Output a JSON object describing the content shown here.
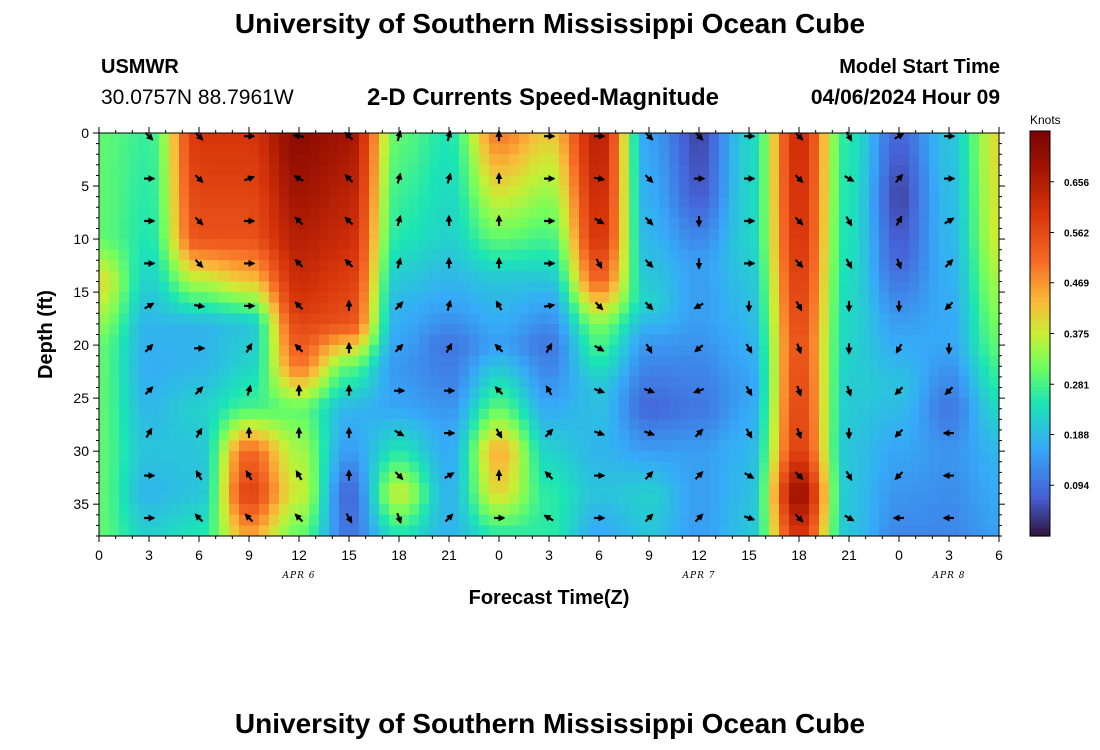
{
  "header": {
    "title": "University of Southern Mississippi Ocean Cube",
    "station": "USMWR",
    "coordinates": "30.0757N  88.7961W",
    "subtitle": "2-D Currents Speed-Magnitude",
    "model_start_label": "Model Start Time",
    "model_start_value": "04/06/2024 Hour 09"
  },
  "footer": {
    "title": "University of Southern Mississippi Ocean Cube"
  },
  "chart_data": {
    "type": "heatmap",
    "title": "2-D Currents Speed-Magnitude",
    "xlabel": "Forecast Time(Z)",
    "ylabel": "Depth (ft)",
    "x_range_hours": [
      0,
      54
    ],
    "y_range_ft": [
      0,
      38
    ],
    "x_ticks": [
      {
        "h": 0,
        "label": "0"
      },
      {
        "h": 3,
        "label": "3"
      },
      {
        "h": 6,
        "label": "6"
      },
      {
        "h": 9,
        "label": "9"
      },
      {
        "h": 12,
        "label": "12"
      },
      {
        "h": 15,
        "label": "15"
      },
      {
        "h": 18,
        "label": "18"
      },
      {
        "h": 21,
        "label": "21"
      },
      {
        "h": 24,
        "label": "0"
      },
      {
        "h": 27,
        "label": "3"
      },
      {
        "h": 30,
        "label": "6"
      },
      {
        "h": 33,
        "label": "9"
      },
      {
        "h": 36,
        "label": "12"
      },
      {
        "h": 39,
        "label": "15"
      },
      {
        "h": 42,
        "label": "18"
      },
      {
        "h": 45,
        "label": "21"
      },
      {
        "h": 48,
        "label": "0"
      },
      {
        "h": 51,
        "label": "3"
      },
      {
        "h": 54,
        "label": "6"
      }
    ],
    "date_labels": [
      {
        "h": 12,
        "label": "APR 6"
      },
      {
        "h": 36,
        "label": "APR 7"
      },
      {
        "h": 51,
        "label": "APR 8"
      }
    ],
    "y_ticks": [
      0,
      5,
      10,
      15,
      20,
      25,
      30,
      35
    ],
    "colorbar": {
      "unit": "Knots",
      "min": 0.0,
      "max": 0.75,
      "ticks": [
        "0.656",
        "0.562",
        "0.469",
        "0.375",
        "0.281",
        "0.188",
        "0.094"
      ],
      "tick_values": [
        0.656,
        0.562,
        0.469,
        0.375,
        0.281,
        0.188,
        0.094
      ]
    },
    "speed_columns": [
      {
        "h": 0,
        "profile": [
          [
            0,
            0.3
          ],
          [
            10,
            0.3
          ],
          [
            14,
            0.4
          ],
          [
            20,
            0.3
          ],
          [
            38,
            0.3
          ]
        ]
      },
      {
        "h": 3,
        "profile": [
          [
            0,
            0.27
          ],
          [
            10,
            0.25
          ],
          [
            14,
            0.22
          ],
          [
            18,
            0.18
          ],
          [
            22,
            0.17
          ],
          [
            30,
            0.2
          ],
          [
            34,
            0.18
          ],
          [
            38,
            0.22
          ]
        ]
      },
      {
        "h": 6,
        "profile": [
          [
            0,
            0.6
          ],
          [
            10,
            0.55
          ],
          [
            14,
            0.36
          ],
          [
            18,
            0.18
          ],
          [
            22,
            0.18
          ],
          [
            26,
            0.22
          ],
          [
            30,
            0.2
          ],
          [
            34,
            0.2
          ],
          [
            38,
            0.25
          ]
        ]
      },
      {
        "h": 9,
        "profile": [
          [
            0,
            0.6
          ],
          [
            10,
            0.55
          ],
          [
            14,
            0.42
          ],
          [
            18,
            0.2
          ],
          [
            22,
            0.22
          ],
          [
            26,
            0.28
          ],
          [
            30,
            0.52
          ],
          [
            34,
            0.58
          ],
          [
            38,
            0.45
          ]
        ]
      },
      {
        "h": 12,
        "profile": [
          [
            0,
            0.72
          ],
          [
            10,
            0.65
          ],
          [
            16,
            0.6
          ],
          [
            22,
            0.5
          ],
          [
            26,
            0.3
          ],
          [
            30,
            0.35
          ],
          [
            34,
            0.38
          ],
          [
            38,
            0.3
          ]
        ]
      },
      {
        "h": 15,
        "profile": [
          [
            0,
            0.68
          ],
          [
            10,
            0.62
          ],
          [
            18,
            0.55
          ],
          [
            22,
            0.3
          ],
          [
            26,
            0.18
          ],
          [
            30,
            0.15
          ],
          [
            34,
            0.08
          ],
          [
            38,
            0.1
          ]
        ]
      },
      {
        "h": 18,
        "profile": [
          [
            0,
            0.3
          ],
          [
            10,
            0.25
          ],
          [
            16,
            0.18
          ],
          [
            22,
            0.14
          ],
          [
            26,
            0.16
          ],
          [
            30,
            0.25
          ],
          [
            34,
            0.38
          ],
          [
            38,
            0.24
          ]
        ]
      },
      {
        "h": 21,
        "profile": [
          [
            0,
            0.25
          ],
          [
            10,
            0.22
          ],
          [
            16,
            0.16
          ],
          [
            20,
            0.1
          ],
          [
            24,
            0.12
          ],
          [
            28,
            0.16
          ],
          [
            34,
            0.18
          ],
          [
            38,
            0.18
          ]
        ]
      },
      {
        "h": 24,
        "profile": [
          [
            0,
            0.5
          ],
          [
            10,
            0.3
          ],
          [
            14,
            0.2
          ],
          [
            20,
            0.15
          ],
          [
            26,
            0.3
          ],
          [
            30,
            0.45
          ],
          [
            34,
            0.4
          ],
          [
            38,
            0.25
          ]
        ]
      },
      {
        "h": 27,
        "profile": [
          [
            0,
            0.42
          ],
          [
            10,
            0.28
          ],
          [
            16,
            0.16
          ],
          [
            20,
            0.1
          ],
          [
            24,
            0.14
          ],
          [
            30,
            0.22
          ],
          [
            34,
            0.26
          ],
          [
            38,
            0.26
          ]
        ]
      },
      {
        "h": 30,
        "profile": [
          [
            0,
            0.65
          ],
          [
            10,
            0.6
          ],
          [
            14,
            0.52
          ],
          [
            18,
            0.32
          ],
          [
            24,
            0.2
          ],
          [
            30,
            0.18
          ],
          [
            34,
            0.2
          ],
          [
            38,
            0.16
          ]
        ]
      },
      {
        "h": 33,
        "profile": [
          [
            0,
            0.15
          ],
          [
            10,
            0.18
          ],
          [
            16,
            0.22
          ],
          [
            20,
            0.14
          ],
          [
            26,
            0.08
          ],
          [
            30,
            0.15
          ],
          [
            34,
            0.22
          ],
          [
            38,
            0.2
          ]
        ]
      },
      {
        "h": 36,
        "profile": [
          [
            0,
            0.05
          ],
          [
            6,
            0.07
          ],
          [
            12,
            0.15
          ],
          [
            18,
            0.15
          ],
          [
            22,
            0.12
          ],
          [
            26,
            0.1
          ],
          [
            30,
            0.15
          ],
          [
            38,
            0.15
          ]
        ]
      },
      {
        "h": 39,
        "profile": [
          [
            0,
            0.22
          ],
          [
            10,
            0.22
          ],
          [
            18,
            0.18
          ],
          [
            24,
            0.15
          ],
          [
            30,
            0.18
          ],
          [
            38,
            0.2
          ]
        ]
      },
      {
        "h": 42,
        "profile": [
          [
            0,
            0.62
          ],
          [
            10,
            0.6
          ],
          [
            20,
            0.55
          ],
          [
            30,
            0.58
          ],
          [
            34,
            0.7
          ],
          [
            38,
            0.6
          ]
        ]
      },
      {
        "h": 45,
        "profile": [
          [
            0,
            0.25
          ],
          [
            10,
            0.24
          ],
          [
            20,
            0.22
          ],
          [
            30,
            0.2
          ],
          [
            38,
            0.2
          ]
        ]
      },
      {
        "h": 48,
        "profile": [
          [
            0,
            0.08
          ],
          [
            6,
            0.05
          ],
          [
            12,
            0.08
          ],
          [
            18,
            0.15
          ],
          [
            24,
            0.2
          ],
          [
            30,
            0.16
          ],
          [
            38,
            0.12
          ]
        ]
      },
      {
        "h": 51,
        "profile": [
          [
            0,
            0.2
          ],
          [
            10,
            0.18
          ],
          [
            20,
            0.16
          ],
          [
            26,
            0.1
          ],
          [
            30,
            0.14
          ],
          [
            38,
            0.12
          ]
        ]
      },
      {
        "h": 54,
        "profile": [
          [
            0,
            0.4
          ],
          [
            10,
            0.38
          ],
          [
            20,
            0.3
          ],
          [
            30,
            0.18
          ],
          [
            38,
            0.15
          ]
        ]
      }
    ],
    "arrow_depths_ft": [
      0,
      4,
      8,
      12,
      16,
      20,
      24,
      28,
      32,
      36
    ],
    "arrow_columns": [
      {
        "h": 3,
        "dirs": [
          135,
          90,
          90,
          90,
          60,
          45,
          45,
          30,
          90,
          90
        ]
      },
      {
        "h": 6,
        "dirs": [
          135,
          135,
          135,
          135,
          100,
          90,
          45,
          30,
          330,
          315
        ]
      },
      {
        "h": 9,
        "dirs": [
          90,
          70,
          90,
          90,
          90,
          30,
          15,
          0,
          330,
          315
        ]
      },
      {
        "h": 12,
        "dirs": [
          280,
          300,
          315,
          315,
          315,
          315,
          0,
          0,
          330,
          315
        ]
      },
      {
        "h": 15,
        "dirs": [
          315,
          315,
          315,
          315,
          0,
          0,
          0,
          0,
          0,
          150
        ]
      },
      {
        "h": 18,
        "dirs": [
          15,
          15,
          15,
          15,
          45,
          45,
          90,
          120,
          135,
          160
        ]
      },
      {
        "h": 21,
        "dirs": [
          15,
          15,
          0,
          0,
          15,
          30,
          90,
          90,
          60,
          45
        ]
      },
      {
        "h": 24,
        "dirs": [
          0,
          0,
          0,
          0,
          330,
          315,
          315,
          150,
          0,
          90
        ]
      },
      {
        "h": 27,
        "dirs": [
          90,
          90,
          90,
          90,
          80,
          30,
          330,
          45,
          315,
          300
        ]
      },
      {
        "h": 30,
        "dirs": [
          90,
          100,
          120,
          150,
          135,
          120,
          110,
          110,
          90,
          90
        ]
      },
      {
        "h": 33,
        "dirs": [
          135,
          135,
          135,
          135,
          135,
          150,
          110,
          110,
          45,
          45
        ]
      },
      {
        "h": 36,
        "dirs": [
          135,
          90,
          180,
          180,
          240,
          230,
          250,
          45,
          45,
          45
        ]
      },
      {
        "h": 39,
        "dirs": [
          90,
          90,
          90,
          90,
          180,
          150,
          150,
          150,
          120,
          110
        ]
      },
      {
        "h": 42,
        "dirs": [
          135,
          135,
          135,
          135,
          150,
          160,
          160,
          160,
          135,
          135
        ]
      },
      {
        "h": 45,
        "dirs": [
          150,
          120,
          150,
          150,
          180,
          180,
          160,
          180,
          150,
          120
        ]
      },
      {
        "h": 48,
        "dirs": [
          60,
          40,
          30,
          160,
          180,
          210,
          225,
          225,
          225,
          270
        ]
      },
      {
        "h": 51,
        "dirs": [
          90,
          90,
          60,
          45,
          225,
          180,
          225,
          270,
          270,
          270
        ]
      }
    ]
  }
}
